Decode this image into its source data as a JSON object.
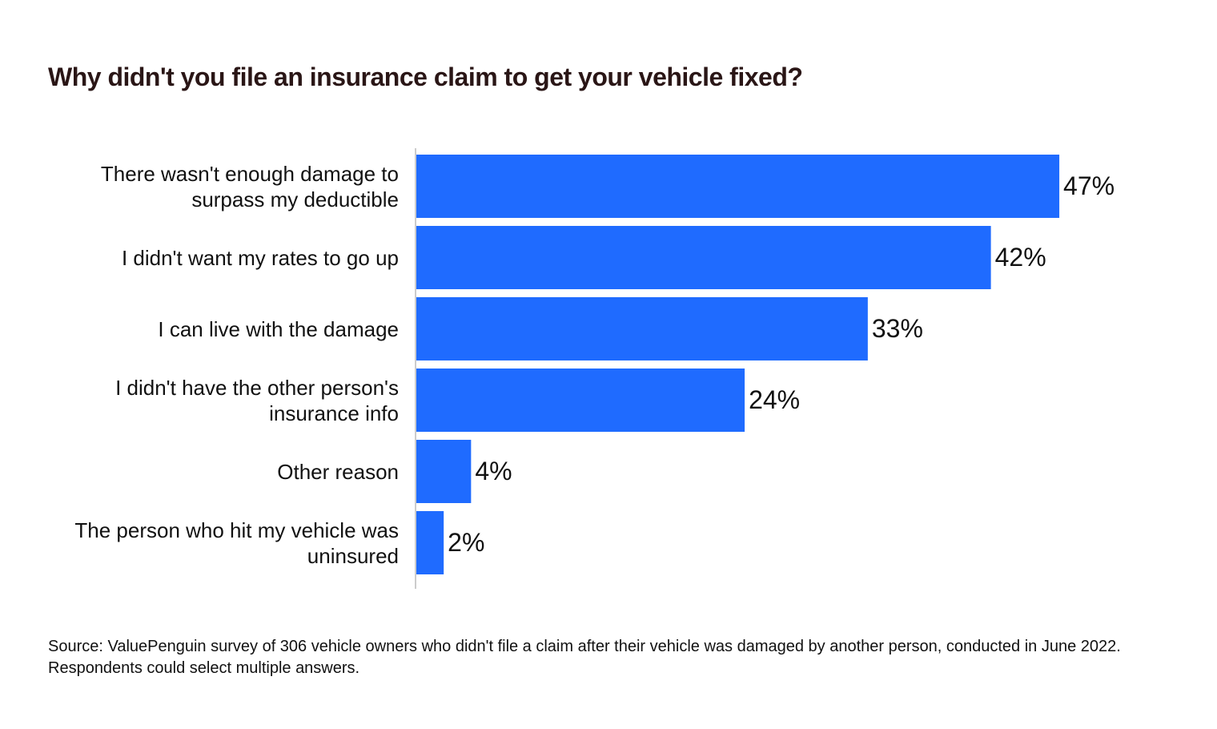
{
  "chart_data": {
    "type": "barh",
    "title": "Why didn't you file an insurance claim to get your vehicle fixed?",
    "categories": [
      "There wasn't enough damage to surpass my deductible",
      "I didn't want my rates to go up",
      "I can live with the damage",
      "I didn't have the other person's insurance info",
      "Other reason",
      "The person who hit my vehicle was uninsured"
    ],
    "values": [
      47,
      42,
      33,
      24,
      4,
      2
    ],
    "value_labels": [
      "47%",
      "42%",
      "33%",
      "24%",
      "4%",
      "2%"
    ],
    "color": "#1f6bff",
    "xlim": [
      0,
      58
    ],
    "source": "Source: ValuePenguin survey of 306 vehicle owners who didn't file a claim after their vehicle was damaged by another person, conducted in June 2022. Respondents could select multiple answers."
  }
}
